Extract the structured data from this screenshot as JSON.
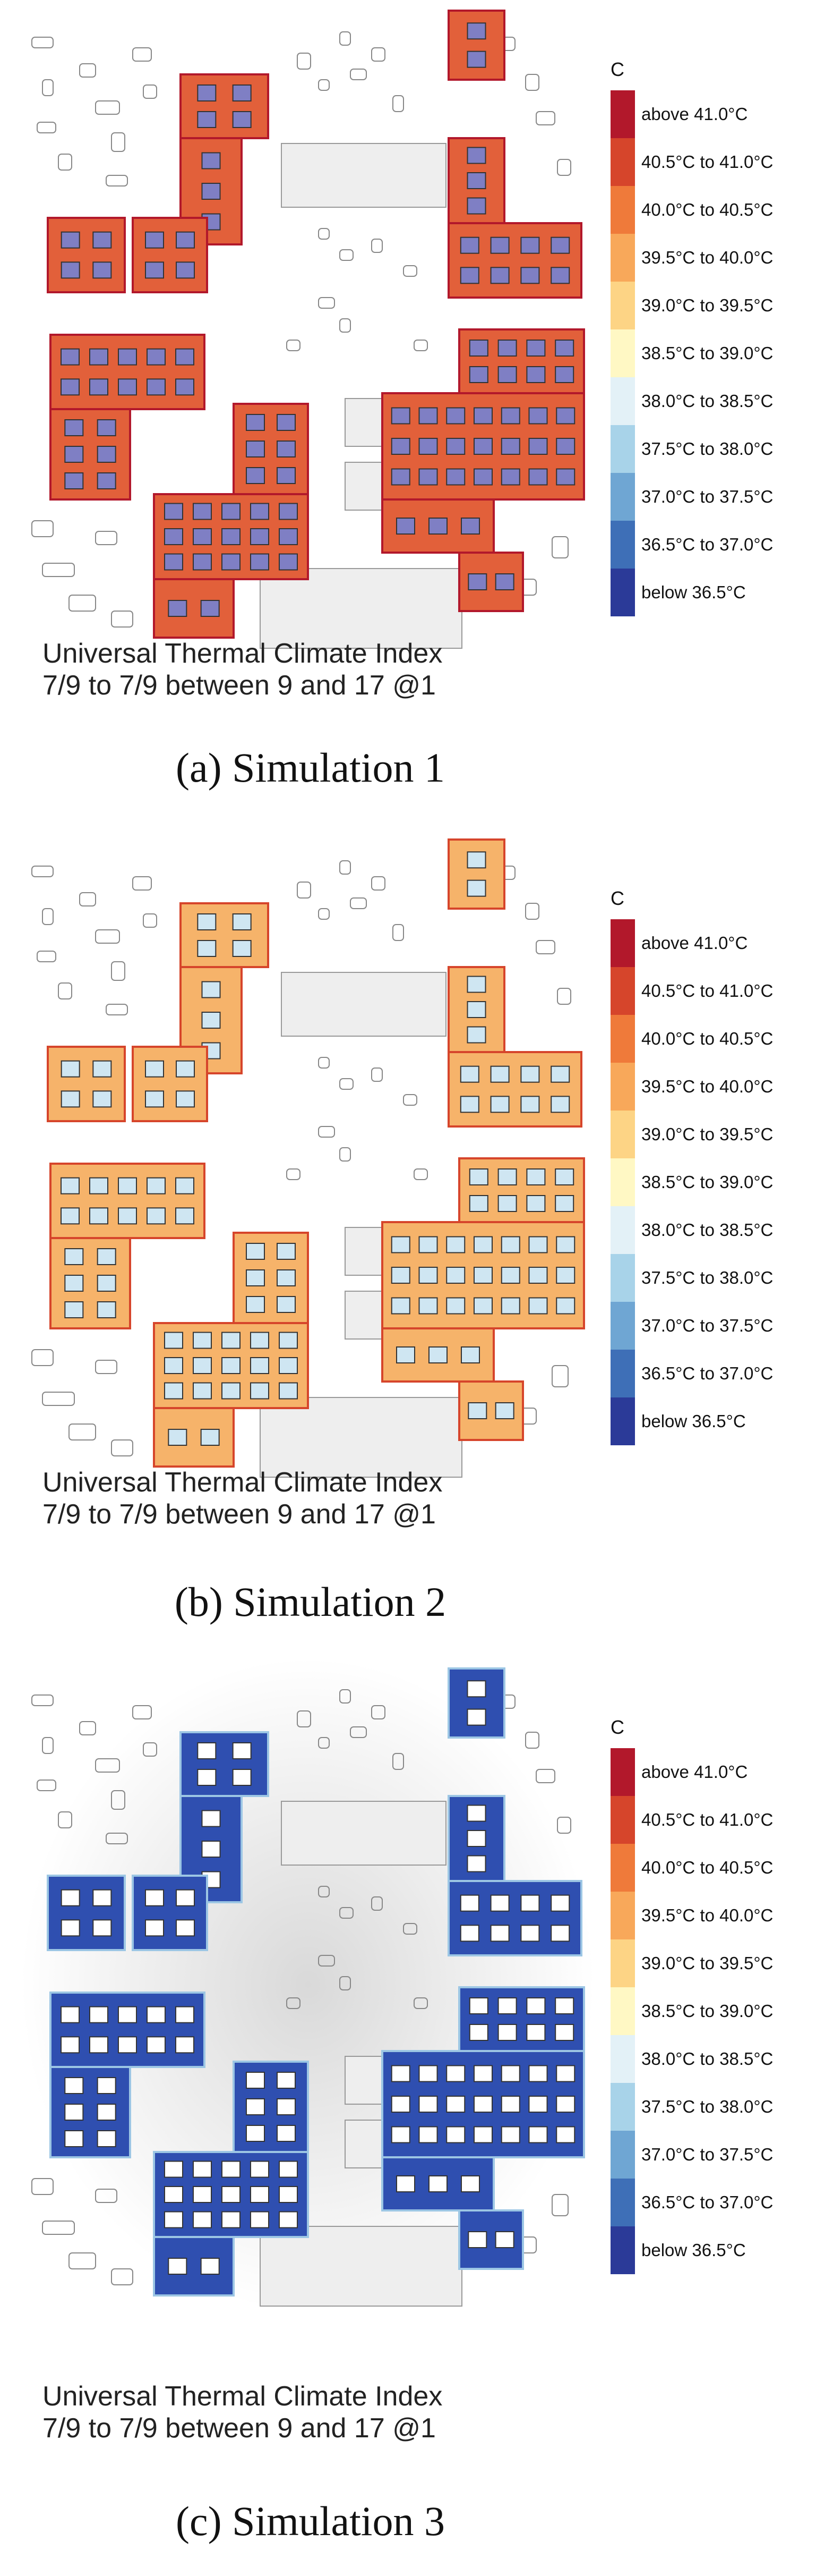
{
  "legend": {
    "unit": "C",
    "items": [
      {
        "label": "above 41.0°C",
        "color": "#b2182b"
      },
      {
        "label": "40.5°C to 41.0°C",
        "color": "#d6452b"
      },
      {
        "label": "40.0°C to 40.5°C",
        "color": "#ef7a3a"
      },
      {
        "label": "39.5°C to 40.0°C",
        "color": "#f8a85a"
      },
      {
        "label": "39.0°C to 39.5°C",
        "color": "#fdd485"
      },
      {
        "label": "38.5°C to 39.0°C",
        "color": "#fff8c4"
      },
      {
        "label": "38.0°C to 38.5°C",
        "color": "#e3f1f7"
      },
      {
        "label": "37.5°C to 38.0°C",
        "color": "#a8d3e9"
      },
      {
        "label": "37.0°C to 37.5°C",
        "color": "#6fa6d3"
      },
      {
        "label": "36.5°C to 37.0°C",
        "color": "#3e6fb7"
      },
      {
        "label": "below 36.5°C",
        "color": "#2b3a98"
      }
    ]
  },
  "panels": [
    {
      "title_line1": "Universal Thermal Climate Index",
      "title_line2": "7/9 to 7/9 between 9 and 17 @1",
      "caption": "(a) Simulation 1",
      "block_color": "#e2603a",
      "block_edge": "#b2182b",
      "cell_color": "#7f7fc4",
      "background": "#ffffff"
    },
    {
      "title_line1": "Universal Thermal Climate Index",
      "title_line2": "7/9 to 7/9 between 9 and 17 @1",
      "caption": "(b) Simulation 2",
      "block_color": "#f6b36a",
      "block_edge": "#d6452b",
      "cell_color": "#cfe6f2",
      "background": "#ffffff"
    },
    {
      "title_line1": "Universal Thermal Climate Index",
      "title_line2": "7/9 to 7/9 between 9 and 17 @1",
      "caption": "(c) Simulation 3",
      "block_color": "#2f4fb0",
      "block_edge": "#9cc6e4",
      "cell_color": "#ffffff",
      "background": "#e6e6e6"
    }
  ]
}
